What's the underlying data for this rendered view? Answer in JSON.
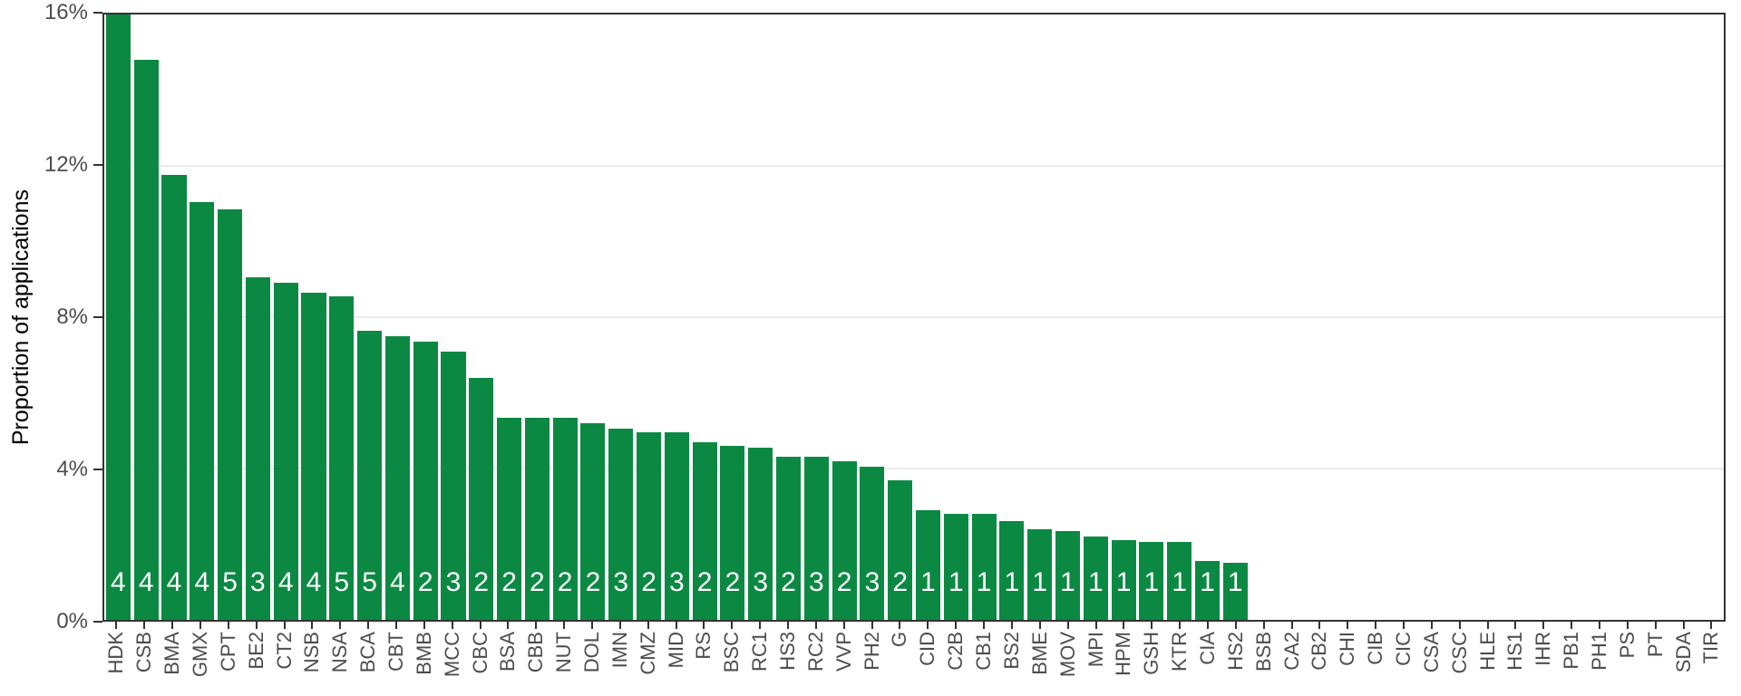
{
  "chart_data": {
    "type": "bar",
    "title": "",
    "xlabel": "",
    "ylabel": "Proportion of applications",
    "ylim": [
      0,
      16
    ],
    "grid": "horizontal-major-only",
    "legend": "none",
    "yticks": [
      {
        "value": 0,
        "label": "0%"
      },
      {
        "value": 4,
        "label": "4%"
      },
      {
        "value": 8,
        "label": "8%"
      },
      {
        "value": 12,
        "label": "12%"
      },
      {
        "value": 16,
        "label": "16%"
      }
    ],
    "bar_label_note": "white number inside each bar is a count annotation",
    "bars": [
      {
        "category": "HDK",
        "value_pct": 16.0,
        "count": 4
      },
      {
        "category": "CSB",
        "value_pct": 14.8,
        "count": 4
      },
      {
        "category": "BMA",
        "value_pct": 11.75,
        "count": 4
      },
      {
        "category": "GMX",
        "value_pct": 11.05,
        "count": 4
      },
      {
        "category": "CPT",
        "value_pct": 10.85,
        "count": 5
      },
      {
        "category": "BE2",
        "value_pct": 9.05,
        "count": 3
      },
      {
        "category": "CT2",
        "value_pct": 8.9,
        "count": 4
      },
      {
        "category": "NSB",
        "value_pct": 8.65,
        "count": 4
      },
      {
        "category": "NSA",
        "value_pct": 8.55,
        "count": 5
      },
      {
        "category": "BCA",
        "value_pct": 7.65,
        "count": 5
      },
      {
        "category": "CBT",
        "value_pct": 7.5,
        "count": 4
      },
      {
        "category": "BMB",
        "value_pct": 7.35,
        "count": 2
      },
      {
        "category": "MCC",
        "value_pct": 7.1,
        "count": 3
      },
      {
        "category": "CBC",
        "value_pct": 6.4,
        "count": 2
      },
      {
        "category": "BSA",
        "value_pct": 5.35,
        "count": 2
      },
      {
        "category": "CBB",
        "value_pct": 5.35,
        "count": 2
      },
      {
        "category": "NUT",
        "value_pct": 5.35,
        "count": 2
      },
      {
        "category": "DOL",
        "value_pct": 5.2,
        "count": 2
      },
      {
        "category": "IMN",
        "value_pct": 5.05,
        "count": 3
      },
      {
        "category": "CMZ",
        "value_pct": 4.95,
        "count": 2
      },
      {
        "category": "MID",
        "value_pct": 4.95,
        "count": 3
      },
      {
        "category": "RS",
        "value_pct": 4.7,
        "count": 2
      },
      {
        "category": "BSC",
        "value_pct": 4.6,
        "count": 2
      },
      {
        "category": "RC1",
        "value_pct": 4.55,
        "count": 3
      },
      {
        "category": "HS3",
        "value_pct": 4.3,
        "count": 2
      },
      {
        "category": "RC2",
        "value_pct": 4.3,
        "count": 3
      },
      {
        "category": "VVP",
        "value_pct": 4.2,
        "count": 2
      },
      {
        "category": "PH2",
        "value_pct": 4.05,
        "count": 3
      },
      {
        "category": "G",
        "value_pct": 3.7,
        "count": 2
      },
      {
        "category": "CID",
        "value_pct": 2.9,
        "count": 1
      },
      {
        "category": "C2B",
        "value_pct": 2.8,
        "count": 1
      },
      {
        "category": "CB1",
        "value_pct": 2.8,
        "count": 1
      },
      {
        "category": "BS2",
        "value_pct": 2.6,
        "count": 1
      },
      {
        "category": "BME",
        "value_pct": 2.4,
        "count": 1
      },
      {
        "category": "MOV",
        "value_pct": 2.35,
        "count": 1
      },
      {
        "category": "MPI",
        "value_pct": 2.2,
        "count": 1
      },
      {
        "category": "HPM",
        "value_pct": 2.1,
        "count": 1
      },
      {
        "category": "GSH",
        "value_pct": 2.05,
        "count": 1
      },
      {
        "category": "KTR",
        "value_pct": 2.05,
        "count": 1
      },
      {
        "category": "CIA",
        "value_pct": 1.55,
        "count": 1
      },
      {
        "category": "HS2",
        "value_pct": 1.5,
        "count": 1
      },
      {
        "category": "BSB",
        "value_pct": 0,
        "count": null
      },
      {
        "category": "CA2",
        "value_pct": 0,
        "count": null
      },
      {
        "category": "CB2",
        "value_pct": 0,
        "count": null
      },
      {
        "category": "CHI",
        "value_pct": 0,
        "count": null
      },
      {
        "category": "CIB",
        "value_pct": 0,
        "count": null
      },
      {
        "category": "CIC",
        "value_pct": 0,
        "count": null
      },
      {
        "category": "CSA",
        "value_pct": 0,
        "count": null
      },
      {
        "category": "CSC",
        "value_pct": 0,
        "count": null
      },
      {
        "category": "HLE",
        "value_pct": 0,
        "count": null
      },
      {
        "category": "HS1",
        "value_pct": 0,
        "count": null
      },
      {
        "category": "IHR",
        "value_pct": 0,
        "count": null
      },
      {
        "category": "PB1",
        "value_pct": 0,
        "count": null
      },
      {
        "category": "PH1",
        "value_pct": 0,
        "count": null
      },
      {
        "category": "PS",
        "value_pct": 0,
        "count": null
      },
      {
        "category": "PT",
        "value_pct": 0,
        "count": null
      },
      {
        "category": "SDA",
        "value_pct": 0,
        "count": null
      },
      {
        "category": "TIR",
        "value_pct": 0,
        "count": null
      }
    ]
  },
  "colors": {
    "bar_fill": "#0b8943",
    "bar_count_text": "#ffffff",
    "panel_border": "#333333",
    "tick_mark": "#333333",
    "tick_label": "#4d4d4d",
    "axis_title": "#000000",
    "gridline": "#ebebeb",
    "background": "#ffffff"
  }
}
